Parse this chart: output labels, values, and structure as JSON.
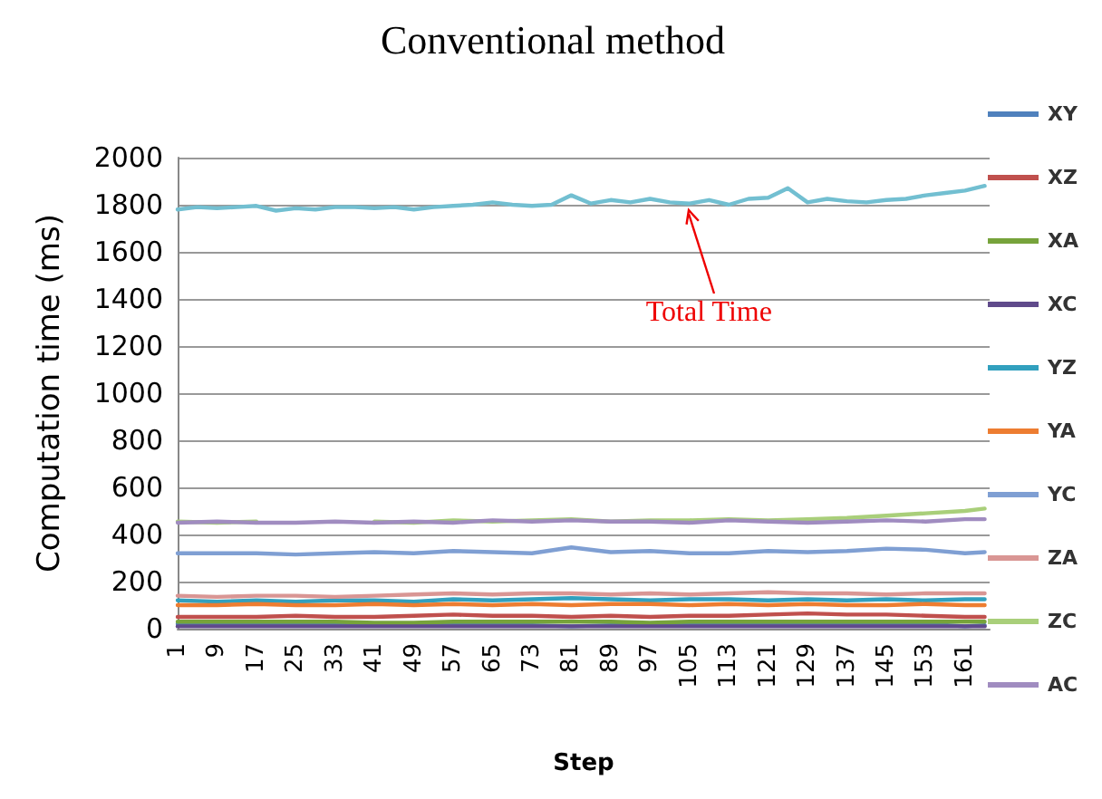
{
  "chart_data": {
    "type": "line",
    "title": "Conventional method",
    "xlabel": "Step",
    "ylabel": "Computation time (ms)",
    "xlim": [
      1,
      166
    ],
    "xticks": [
      1,
      9,
      17,
      25,
      33,
      41,
      49,
      57,
      65,
      73,
      81,
      89,
      97,
      105,
      113,
      121,
      129,
      137,
      145,
      153,
      161
    ],
    "ylim": [
      0,
      2000
    ],
    "yticks": [
      0,
      200,
      400,
      600,
      800,
      1000,
      1200,
      1400,
      1600,
      1800,
      2000
    ],
    "grid": "y",
    "legend": "right",
    "marker": "none",
    "line_style": "solid",
    "annotations": [
      {
        "text": "Total Time",
        "x": 105,
        "y": 1805
      }
    ],
    "series": [
      {
        "name": "XY",
        "color": "#4f81bd",
        "x": [
          1,
          9,
          17,
          25,
          33,
          41,
          49,
          57,
          65,
          73,
          81,
          89,
          97,
          105,
          113,
          121,
          129,
          137,
          145,
          153,
          161,
          165
        ],
        "values": [
          20,
          20,
          20,
          15,
          20,
          15,
          20,
          20,
          15,
          15,
          10,
          15,
          20,
          15,
          15,
          20,
          15,
          20,
          15,
          20,
          10,
          15
        ]
      },
      {
        "name": "XZ",
        "color": "#c0504d",
        "x": [
          1,
          9,
          17,
          25,
          33,
          41,
          49,
          57,
          65,
          73,
          81,
          89,
          97,
          105,
          113,
          121,
          129,
          137,
          145,
          153,
          161,
          165
        ],
        "values": [
          50,
          50,
          50,
          55,
          50,
          50,
          55,
          60,
          55,
          55,
          50,
          55,
          50,
          55,
          55,
          60,
          65,
          60,
          60,
          55,
          50,
          50
        ]
      },
      {
        "name": "XA",
        "color": "#77a33b",
        "x": [
          1,
          9,
          17,
          25,
          33,
          41,
          49,
          57,
          65,
          73,
          81,
          89,
          97,
          105,
          113,
          121,
          129,
          137,
          145,
          153,
          161,
          165
        ],
        "values": [
          30,
          30,
          30,
          30,
          30,
          25,
          25,
          30,
          30,
          30,
          30,
          30,
          25,
          30,
          30,
          30,
          30,
          30,
          30,
          30,
          30,
          30
        ]
      },
      {
        "name": "XC",
        "color": "#604a8b",
        "x": [
          1,
          9,
          17,
          25,
          33,
          41,
          49,
          57,
          65,
          73,
          81,
          89,
          97,
          105,
          113,
          121,
          129,
          137,
          145,
          153,
          161,
          165
        ],
        "values": [
          10,
          10,
          10,
          10,
          10,
          10,
          10,
          10,
          10,
          10,
          10,
          10,
          10,
          10,
          10,
          10,
          10,
          10,
          10,
          10,
          10,
          10
        ]
      },
      {
        "name": "YZ",
        "color": "#31a0be",
        "x": [
          1,
          9,
          17,
          25,
          33,
          41,
          49,
          57,
          65,
          73,
          81,
          89,
          97,
          105,
          113,
          121,
          129,
          137,
          145,
          153,
          161,
          165
        ],
        "values": [
          120,
          115,
          120,
          115,
          120,
          120,
          115,
          125,
          120,
          125,
          130,
          125,
          120,
          125,
          125,
          120,
          125,
          120,
          125,
          120,
          125,
          125
        ]
      },
      {
        "name": "YA",
        "color": "#ed7d31",
        "x": [
          1,
          9,
          17,
          25,
          33,
          41,
          49,
          57,
          65,
          73,
          81,
          89,
          97,
          105,
          113,
          121,
          129,
          137,
          145,
          153,
          161,
          165
        ],
        "values": [
          100,
          100,
          105,
          100,
          100,
          105,
          100,
          105,
          100,
          105,
          100,
          105,
          105,
          100,
          105,
          100,
          105,
          100,
          100,
          105,
          100,
          100
        ]
      },
      {
        "name": "YC",
        "color": "#7f9fd3",
        "x": [
          1,
          9,
          17,
          25,
          33,
          41,
          49,
          57,
          65,
          73,
          81,
          89,
          97,
          105,
          113,
          121,
          129,
          137,
          145,
          153,
          161,
          165
        ],
        "values": [
          320,
          320,
          320,
          315,
          320,
          325,
          320,
          330,
          325,
          320,
          345,
          325,
          330,
          320,
          320,
          330,
          325,
          330,
          340,
          335,
          320,
          325
        ]
      },
      {
        "name": "ZA",
        "color": "#d99694",
        "x": [
          1,
          9,
          17,
          25,
          33,
          41,
          49,
          57,
          65,
          73,
          81,
          89,
          97,
          105,
          113,
          121,
          129,
          137,
          145,
          153,
          161,
          165
        ],
        "values": [
          140,
          135,
          140,
          140,
          135,
          140,
          145,
          150,
          145,
          150,
          150,
          145,
          150,
          145,
          150,
          155,
          150,
          150,
          145,
          150,
          150,
          150
        ]
      },
      {
        "name": "ZC",
        "color": "#a9cf7a",
        "x": [
          1,
          9,
          17,
          25,
          33,
          41,
          49,
          57,
          65,
          73,
          81,
          89,
          97,
          105,
          113,
          121,
          129,
          137,
          145,
          153,
          161,
          165
        ],
        "values": [
          455,
          450,
          455,
          null,
          null,
          455,
          450,
          460,
          455,
          460,
          465,
          455,
          460,
          460,
          465,
          460,
          465,
          470,
          480,
          490,
          500,
          510
        ]
      },
      {
        "name": "AC",
        "color": "#a08cc0",
        "x": [
          1,
          9,
          17,
          25,
          33,
          41,
          49,
          57,
          65,
          73,
          81,
          89,
          97,
          105,
          113,
          121,
          129,
          137,
          145,
          153,
          161,
          165
        ],
        "values": [
          450,
          455,
          450,
          450,
          455,
          450,
          455,
          450,
          460,
          455,
          460,
          455,
          455,
          450,
          460,
          455,
          450,
          455,
          460,
          455,
          465,
          465
        ]
      },
      {
        "color": "#72bfd1",
        "x": [
          1,
          5,
          9,
          13,
          17,
          21,
          25,
          29,
          33,
          37,
          41,
          45,
          49,
          53,
          57,
          61,
          65,
          69,
          73,
          77,
          81,
          85,
          89,
          93,
          97,
          101,
          105,
          109,
          113,
          117,
          121,
          125,
          129,
          133,
          137,
          141,
          145,
          149,
          153,
          157,
          161,
          165
        ],
        "values": [
          1780,
          1790,
          1785,
          1790,
          1795,
          1775,
          1785,
          1780,
          1790,
          1790,
          1785,
          1790,
          1780,
          1790,
          1795,
          1800,
          1810,
          1800,
          1795,
          1800,
          1840,
          1805,
          1820,
          1810,
          1825,
          1810,
          1805,
          1820,
          1800,
          1825,
          1830,
          1870,
          1810,
          1825,
          1815,
          1810,
          1820,
          1825,
          1840,
          1850,
          1860,
          1880
        ]
      }
    ]
  }
}
